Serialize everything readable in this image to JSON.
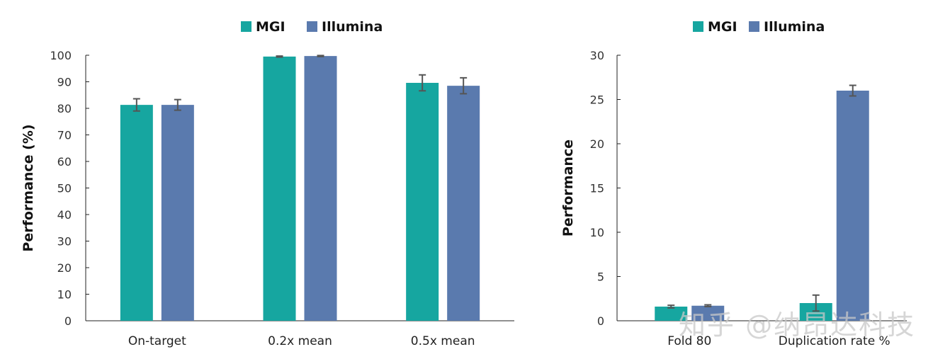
{
  "chart_data": [
    {
      "type": "bar",
      "title": "",
      "xlabel": "",
      "ylabel": "Performance (%)",
      "ylim": [
        0,
        100
      ],
      "yticks": [
        0,
        10,
        20,
        30,
        40,
        50,
        60,
        70,
        80,
        90,
        100
      ],
      "categories": [
        "On-target",
        "0.2x mean",
        "0.5x mean"
      ],
      "series": [
        {
          "name": "MGI",
          "color": "#16A6A0",
          "values": [
            81.3,
            99.5,
            89.6
          ],
          "errors": [
            2.3,
            0.2,
            3.0
          ]
        },
        {
          "name": "Illumina",
          "color": "#5A7AAE",
          "values": [
            81.3,
            99.7,
            88.5
          ],
          "errors": [
            2.0,
            0.2,
            3.0
          ]
        }
      ],
      "legend_position": "top",
      "grid": false
    },
    {
      "type": "bar",
      "title": "",
      "xlabel": "",
      "ylabel": "Performance",
      "ylim": [
        0,
        30
      ],
      "yticks": [
        0,
        5,
        10,
        15,
        20,
        25,
        30
      ],
      "categories": [
        "Fold 80",
        "Duplication rate %"
      ],
      "series": [
        {
          "name": "MGI",
          "color": "#16A6A0",
          "values": [
            1.6,
            2.0
          ],
          "errors": [
            0.15,
            0.9
          ]
        },
        {
          "name": "Illumina",
          "color": "#5A7AAE",
          "values": [
            1.7,
            26.0
          ],
          "errors": [
            0.1,
            0.6
          ]
        }
      ],
      "legend_position": "top",
      "grid": false
    }
  ],
  "watermark": "知乎 @纳昂达科技"
}
